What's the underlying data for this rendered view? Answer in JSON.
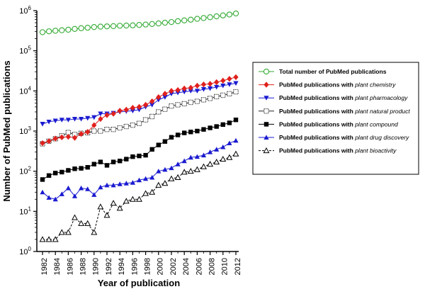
{
  "chart_data": {
    "type": "line",
    "yscale": "log",
    "ylim": [
      1,
      1000000
    ],
    "xlim": [
      1982,
      2012
    ],
    "xlabel": "Year of publication",
    "ylabel": "Number of PubMed publications",
    "x_tick_labels": [
      "1982",
      "1984",
      "1986",
      "1988",
      "1990",
      "1992",
      "1994",
      "1996",
      "1998",
      "2000",
      "2002",
      "2004",
      "2006",
      "2008",
      "2010",
      "2012"
    ],
    "y_tick_labels": [
      {
        "base": "10",
        "exp": "0"
      },
      {
        "base": "10",
        "exp": "1"
      },
      {
        "base": "10",
        "exp": "2"
      },
      {
        "base": "10",
        "exp": "3"
      },
      {
        "base": "10",
        "exp": "4"
      },
      {
        "base": "10",
        "exp": "5"
      },
      {
        "base": "10",
        "exp": "6"
      }
    ],
    "legend_placement": "right",
    "x": [
      1982,
      1983,
      1984,
      1985,
      1986,
      1987,
      1988,
      1989,
      1990,
      1991,
      1992,
      1993,
      1994,
      1995,
      1996,
      1997,
      1998,
      1999,
      2000,
      2001,
      2002,
      2003,
      2004,
      2005,
      2006,
      2007,
      2008,
      2009,
      2010,
      2011,
      2012
    ],
    "series": [
      {
        "name": "Total number of PubMed publications",
        "legend_prefix": "Total number of PubMed publications",
        "legend_term": "",
        "color": "#33aa33",
        "marker": "circle-open",
        "dashed": false,
        "values": [
          290000,
          305000,
          315000,
          325000,
          335000,
          350000,
          365000,
          375000,
          390000,
          400000,
          405000,
          410000,
          420000,
          425000,
          430000,
          440000,
          450000,
          465000,
          480000,
          500000,
          520000,
          545000,
          570000,
          595000,
          625000,
          655000,
          685000,
          720000,
          760000,
          800000,
          850000
        ]
      },
      {
        "name": "PubMed publications with plant chemistry",
        "legend_prefix": "PubMed publications with ",
        "legend_term": "plant chemistry",
        "color": "#e0201c",
        "marker": "diamond",
        "dashed": false,
        "values": [
          500,
          560,
          650,
          700,
          720,
          680,
          850,
          950,
          1400,
          2000,
          2500,
          2700,
          3200,
          3400,
          3800,
          4000,
          4500,
          5500,
          7000,
          8500,
          10000,
          10500,
          11500,
          12000,
          13500,
          14500,
          15000,
          16500,
          18000,
          20000,
          22000
        ]
      },
      {
        "name": "PubMed publications with plant pharmacology",
        "legend_prefix": "PubMed publications with ",
        "legend_term": "plant pharmacology",
        "color": "#1a1ad0",
        "marker": "triangle-down",
        "dashed": false,
        "values": [
          1500,
          1700,
          1800,
          1900,
          1900,
          2000,
          2000,
          2100,
          2200,
          2700,
          2700,
          2800,
          3000,
          3100,
          3200,
          3400,
          4000,
          4500,
          6000,
          7000,
          8500,
          9000,
          9500,
          10000,
          10000,
          11000,
          11500,
          12500,
          13500,
          14500,
          15500
        ]
      },
      {
        "name": "PubMed publications with plant natural product",
        "legend_prefix": "PubMed publications with ",
        "legend_term": "plant natural product",
        "color": "#222222",
        "marker": "square-dotted",
        "dashed": false,
        "values": [
          480,
          560,
          640,
          760,
          920,
          820,
          880,
          900,
          1000,
          1000,
          1100,
          1100,
          1200,
          1300,
          1400,
          1550,
          1900,
          2300,
          3000,
          3500,
          4200,
          4500,
          4800,
          5200,
          5500,
          6000,
          6500,
          7200,
          7800,
          8500,
          9500
        ]
      },
      {
        "name": "PubMed publications with plant compound",
        "legend_prefix": "PubMed publications with ",
        "legend_term": "plant compound",
        "color": "#000000",
        "marker": "square",
        "dashed": false,
        "values": [
          62,
          78,
          90,
          95,
          105,
          115,
          118,
          125,
          150,
          170,
          140,
          170,
          180,
          200,
          230,
          240,
          250,
          350,
          450,
          550,
          700,
          800,
          900,
          950,
          1000,
          1100,
          1200,
          1300,
          1450,
          1600,
          1900
        ]
      },
      {
        "name": "PubMed publications with plant drug discovery",
        "legend_prefix": "PubMed publications with ",
        "legend_term": "plant drug discovery",
        "color": "#1a1ad0",
        "marker": "triangle-up",
        "dashed": false,
        "values": [
          30,
          22,
          20,
          27,
          38,
          24,
          38,
          36,
          26,
          40,
          45,
          45,
          48,
          50,
          52,
          60,
          65,
          70,
          100,
          110,
          120,
          150,
          180,
          220,
          230,
          250,
          300,
          350,
          400,
          500,
          580
        ]
      },
      {
        "name": "PubMed publications with plant bioactivity",
        "legend_prefix": "PubMed publications with ",
        "legend_term": "plant bioactivity",
        "color": "#000000",
        "marker": "triangle-up-open",
        "dashed": true,
        "values": [
          2,
          2,
          2,
          3,
          3,
          7,
          5,
          5,
          3,
          13,
          8,
          16,
          12,
          18,
          20,
          20,
          28,
          30,
          45,
          50,
          65,
          70,
          95,
          100,
          110,
          130,
          150,
          170,
          200,
          220,
          270
        ]
      }
    ]
  }
}
